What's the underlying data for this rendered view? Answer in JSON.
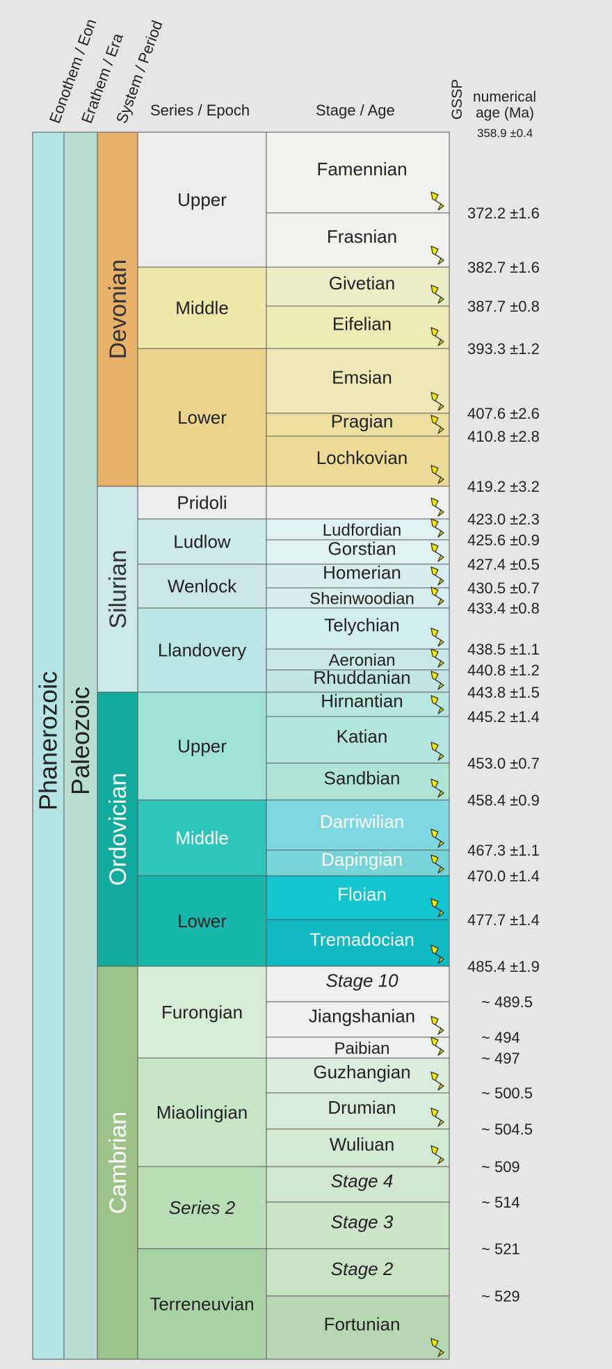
{
  "headers": {
    "eonothem": "Eonothem / Eon",
    "erathem": "Erathem / Era",
    "system": "System / Period",
    "series": "Series / Epoch",
    "stage": "Stage / Age",
    "gssp": "GSSP",
    "numerical_line1": "numerical",
    "numerical_line2": "age (Ma)",
    "top_age": "358.9 ±0.4"
  },
  "chart_data": {
    "type": "table",
    "eon": {
      "name": "Phanerozoic",
      "color": "#b5e4e4"
    },
    "era": {
      "name": "Paleozoic",
      "color": "#b9ddd3"
    },
    "periods": [
      {
        "name": "Devonian",
        "color": "#e7b169",
        "text_color": "#333333"
      },
      {
        "name": "Silurian",
        "color": "#cde8e8",
        "text_color": "#333333"
      },
      {
        "name": "Ordovician",
        "color": "#12ab9e",
        "text_color": "#ffffff"
      },
      {
        "name": "Cambrian",
        "color": "#9dc389",
        "text_color": "#ffffff"
      }
    ],
    "series": [
      {
        "name": "Upper",
        "period": "Devonian",
        "color": "#ececea",
        "italic": false
      },
      {
        "name": "Middle",
        "period": "Devonian",
        "color": "#ede7a9",
        "italic": false
      },
      {
        "name": "Lower",
        "period": "Devonian",
        "color": "#ecd38c",
        "italic": false
      },
      {
        "name": "Pridoli",
        "period": "Silurian",
        "color": "#ececea",
        "italic": false
      },
      {
        "name": "Ludlow",
        "period": "Silurian",
        "color": "#cdebeb",
        "italic": false
      },
      {
        "name": "Wenlock",
        "period": "Silurian",
        "color": "#cbe6e6",
        "italic": false
      },
      {
        "name": "Llandovery",
        "period": "Silurian",
        "color": "#b9e5e5",
        "italic": false
      },
      {
        "name": "Upper",
        "period": "Ordovician",
        "color": "#9ee1d6",
        "italic": false
      },
      {
        "name": "Middle",
        "period": "Ordovician",
        "color": "#2ec6ba",
        "italic": false,
        "text_color": "#ffffff"
      },
      {
        "name": "Lower",
        "period": "Ordovician",
        "color": "#16b6ab",
        "italic": false
      },
      {
        "name": "Furongian",
        "period": "Cambrian",
        "color": "#d7ecd6",
        "italic": false
      },
      {
        "name": "Miaolingian",
        "period": "Cambrian",
        "color": "#c6e5c5",
        "italic": false
      },
      {
        "name": "Series 2",
        "period": "Cambrian",
        "color": "#b9ddb5",
        "italic": true
      },
      {
        "name": "Terreneuvian",
        "period": "Cambrian",
        "color": "#a9d3a4",
        "italic": false
      }
    ],
    "stages": [
      {
        "name": "Famennian",
        "color": "#f1f1ee",
        "italic": false,
        "text_color": "#222222",
        "gssp": true,
        "base_age": "372.2 ±1.6"
      },
      {
        "name": "Frasnian",
        "color": "#f1f1ee",
        "italic": false,
        "text_color": "#222222",
        "gssp": true,
        "base_age": "382.7 ±1.6"
      },
      {
        "name": "Givetian",
        "color": "#ececc6",
        "italic": false,
        "text_color": "#222222",
        "gssp": true,
        "base_age": "387.7 ±0.8"
      },
      {
        "name": "Eifelian",
        "color": "#eeeab5",
        "italic": false,
        "text_color": "#222222",
        "gssp": true,
        "base_age": "393.3 ±1.2"
      },
      {
        "name": "Emsian",
        "color": "#ede8b5",
        "italic": false,
        "text_color": "#222222",
        "gssp": true,
        "base_age": "407.6 ±2.6"
      },
      {
        "name": "Pragian",
        "color": "#ecdf9f",
        "italic": false,
        "text_color": "#222222",
        "gssp": true,
        "base_age": "410.8 ±2.8"
      },
      {
        "name": "Lochkovian",
        "color": "#ecdb96",
        "italic": false,
        "text_color": "#222222",
        "gssp": true,
        "base_age": "419.2 ±3.2"
      },
      {
        "name": "",
        "color": "#eef1f0",
        "italic": false,
        "text_color": "#222222",
        "gssp": true,
        "base_age": "423.0 ±2.3"
      },
      {
        "name": "Ludfordian",
        "color": "#e0f1f1",
        "italic": false,
        "text_color": "#222222",
        "gssp": true,
        "base_age": "425.6 ±0.9"
      },
      {
        "name": "Gorstian",
        "color": "#e0f1f1",
        "italic": false,
        "text_color": "#222222",
        "gssp": true,
        "base_age": "427.4 ±0.5"
      },
      {
        "name": "Homerian",
        "color": "#d8eeee",
        "italic": false,
        "text_color": "#222222",
        "gssp": true,
        "base_age": "430.5 ±0.7"
      },
      {
        "name": "Sheinwoodian",
        "color": "#d8eeee",
        "italic": false,
        "text_color": "#222222",
        "gssp": true,
        "base_age": "433.4 ±0.8"
      },
      {
        "name": "Telychian",
        "color": "#d2eded",
        "italic": false,
        "text_color": "#222222",
        "gssp": true,
        "base_age": "438.5 ±1.1"
      },
      {
        "name": "Aeronian",
        "color": "#c9e9e9",
        "italic": false,
        "text_color": "#222222",
        "gssp": true,
        "base_age": "440.8 ±1.2"
      },
      {
        "name": "Rhuddanian",
        "color": "#c1e5e5",
        "italic": false,
        "text_color": "#222222",
        "gssp": true,
        "base_age": "443.8 ±1.5"
      },
      {
        "name": "Hirnantian",
        "color": "#b8e6e0",
        "italic": false,
        "text_color": "#222222",
        "gssp": true,
        "base_age": "445.2 ±1.4"
      },
      {
        "name": "Katian",
        "color": "#b5e6de",
        "italic": false,
        "text_color": "#222222",
        "gssp": true,
        "base_age": "453.0 ±0.7"
      },
      {
        "name": "Sandbian",
        "color": "#aee3d7",
        "italic": false,
        "text_color": "#222222",
        "gssp": true,
        "base_age": "458.4 ±0.9"
      },
      {
        "name": "Darriwilian",
        "color": "#7fd8e1",
        "italic": false,
        "text_color": "#ffffff",
        "gssp": true,
        "base_age": "467.3 ±1.1"
      },
      {
        "name": "Dapingian",
        "color": "#76d3d8",
        "italic": false,
        "text_color": "#ffffff",
        "gssp": true,
        "base_age": "470.0 ±1.4"
      },
      {
        "name": "Floian",
        "color": "#14c4cf",
        "italic": false,
        "text_color": "#ffffff",
        "gssp": true,
        "base_age": "477.7 ±1.4"
      },
      {
        "name": "Tremadocian",
        "color": "#0fb9c2",
        "italic": false,
        "text_color": "#ffffff",
        "gssp": true,
        "base_age": "485.4 ±1.9"
      },
      {
        "name": "Stage 10",
        "color": "#eef1ee",
        "italic": true,
        "text_color": "#222222",
        "gssp": false,
        "base_age": "~ 489.5"
      },
      {
        "name": "Jiangshanian",
        "color": "#eef1ee",
        "italic": false,
        "text_color": "#222222",
        "gssp": true,
        "base_age": "~ 494"
      },
      {
        "name": "Paibian",
        "color": "#eef1ee",
        "italic": false,
        "text_color": "#222222",
        "gssp": true,
        "base_age": "~ 497"
      },
      {
        "name": "Guzhangian",
        "color": "#dcede0",
        "italic": false,
        "text_color": "#222222",
        "gssp": true,
        "base_age": "~ 500.5"
      },
      {
        "name": "Drumian",
        "color": "#d7ebda",
        "italic": false,
        "text_color": "#222222",
        "gssp": true,
        "base_age": "~ 504.5"
      },
      {
        "name": "Wuliuan",
        "color": "#d2e9d4",
        "italic": false,
        "text_color": "#222222",
        "gssp": true,
        "base_age": "~ 509"
      },
      {
        "name": "Stage 4",
        "color": "#d2e7d0",
        "italic": true,
        "text_color": "#222222",
        "gssp": false,
        "base_age": "~ 514"
      },
      {
        "name": "Stage 3",
        "color": "#cce4c8",
        "italic": true,
        "text_color": "#222222",
        "gssp": false,
        "base_age": "~ 521"
      },
      {
        "name": "Stage 2",
        "color": "#c9e2c4",
        "italic": true,
        "text_color": "#222222",
        "gssp": false,
        "base_age": "~ 529"
      },
      {
        "name": "Fortunian",
        "color": "#b6d7b1",
        "italic": false,
        "text_color": "#222222",
        "gssp": true,
        "base_age": ""
      }
    ],
    "gssp_color": "#f0e800"
  }
}
